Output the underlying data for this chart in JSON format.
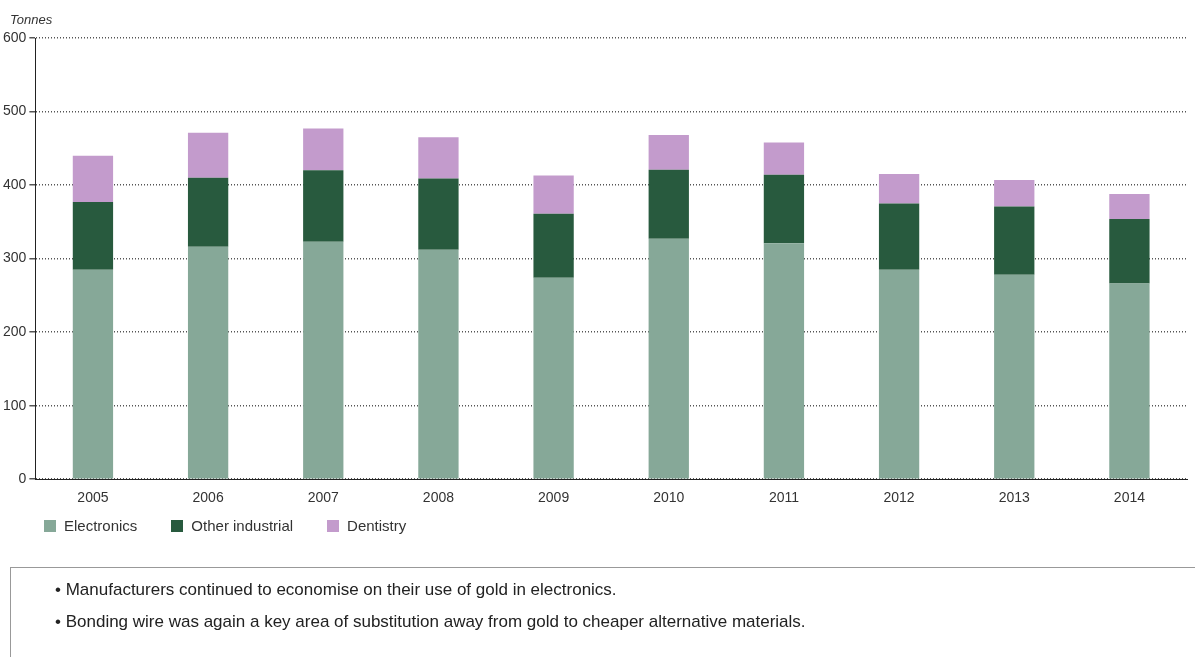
{
  "chart_data": {
    "type": "bar",
    "ylabel": "Tonnes",
    "stacked": true,
    "categories": [
      "2005",
      "2006",
      "2007",
      "2008",
      "2009",
      "2010",
      "2011",
      "2012",
      "2013",
      "2014"
    ],
    "series": [
      {
        "name": "Electronics",
        "color": "#86a898",
        "values": [
          285,
          316,
          323,
          312,
          274,
          327,
          321,
          285,
          278,
          266
        ]
      },
      {
        "name": "Other industrial",
        "color": "#285a3e",
        "values": [
          92,
          94,
          97,
          97,
          87,
          94,
          93,
          90,
          93,
          88
        ]
      },
      {
        "name": "Dentistry",
        "color": "#c39bcc",
        "values": [
          63,
          61,
          57,
          56,
          52,
          47,
          44,
          40,
          36,
          34
        ]
      }
    ],
    "ylim": [
      0,
      600
    ],
    "yticks": [
      0,
      100,
      200,
      300,
      400,
      500,
      600
    ],
    "grid": "y",
    "legend": "bottom left",
    "annotations": [
      "• Manufacturers continued to economise on their use of gold in electronics.",
      "• Bonding wire was again a key area of substitution away from gold to cheaper alternative materials."
    ]
  }
}
